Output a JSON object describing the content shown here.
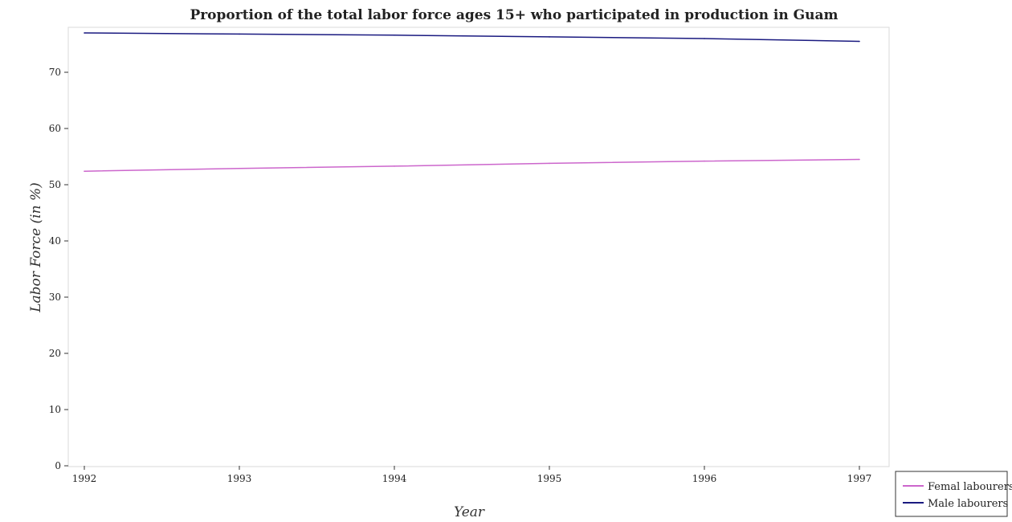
{
  "chart_data": {
    "type": "line",
    "title": "Proportion of the total labor force ages 15+ who participated in production in Guam",
    "xlabel": "Year",
    "ylabel": "Labor Force (in %)",
    "categories": [
      "1992",
      "1993",
      "1994",
      "1995",
      "1996",
      "1997"
    ],
    "ylim": [
      0,
      78
    ],
    "yticks": [
      0,
      10,
      20,
      30,
      40,
      50,
      60,
      70
    ],
    "grid": false,
    "legend_position": "bottom-right",
    "series": [
      {
        "name": "Femal labourers",
        "color": "#cc66cc",
        "values": [
          52.4,
          52.9,
          53.3,
          53.8,
          54.2,
          54.5
        ]
      },
      {
        "name": "Male labourers",
        "color": "#1a1a80",
        "values": [
          77.0,
          76.8,
          76.6,
          76.3,
          76.0,
          75.5
        ]
      }
    ]
  }
}
